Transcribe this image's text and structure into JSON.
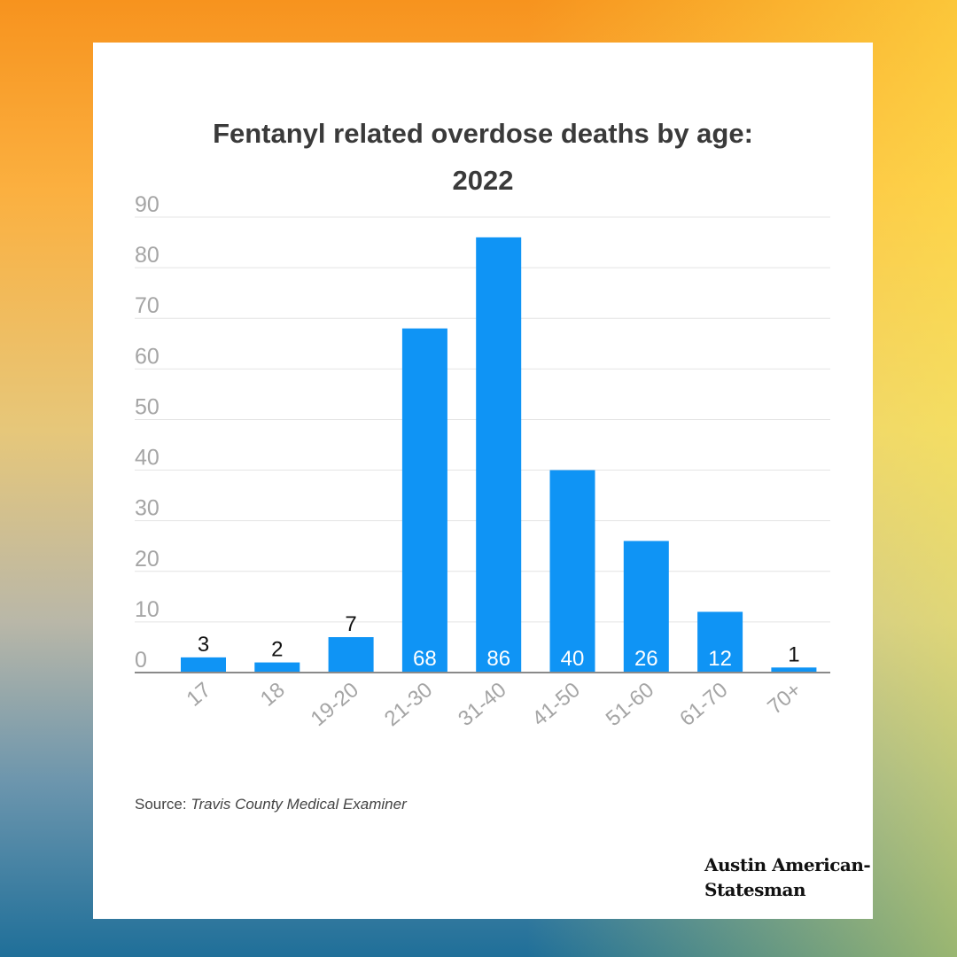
{
  "title_lines": [
    "Fentanyl related overdose deaths by age:",
    "2022"
  ],
  "source": {
    "label": "Source:",
    "name": "Travis County Medical Examiner"
  },
  "brand": {
    "line1": "Austin American-",
    "line2": "Statesman"
  },
  "colors": {
    "bar": "#0f94f5",
    "grid": "#e4e4e4",
    "axis": "#8a8a8a",
    "tick": "#a5a5a5"
  },
  "chart_data": {
    "type": "bar",
    "title": "Fentanyl related overdose deaths by age: 2022",
    "xlabel": "",
    "ylabel": "",
    "categories": [
      "17",
      "18",
      "19-20",
      "21-30",
      "31-40",
      "41-50",
      "51-60",
      "61-70",
      "70+"
    ],
    "values": [
      3,
      2,
      7,
      68,
      86,
      40,
      26,
      12,
      1
    ],
    "y_ticks": [
      0,
      10,
      20,
      30,
      40,
      50,
      60,
      70,
      80,
      90
    ],
    "ylim": [
      0,
      90
    ],
    "grid": true,
    "data_labels": true,
    "x_tick_rotation": "diagonal"
  }
}
